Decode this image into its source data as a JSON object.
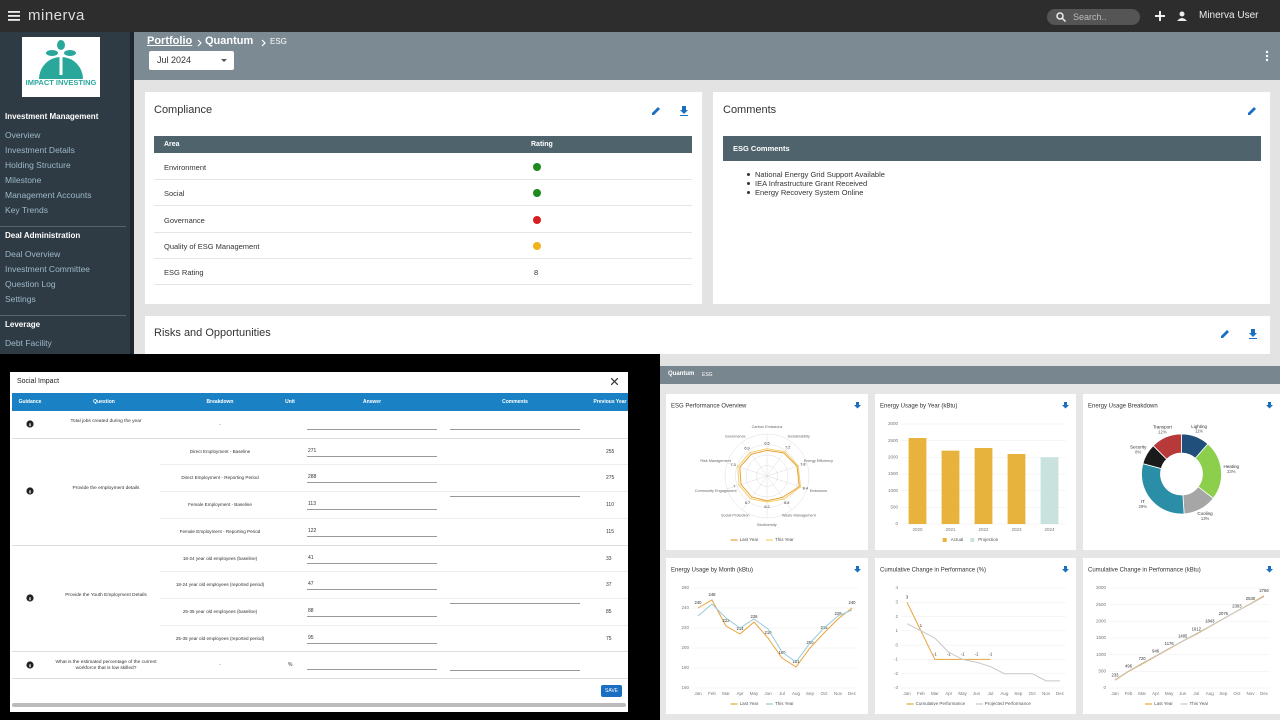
{
  "topbar": {
    "app": "minerva",
    "search": "Search..",
    "user": "Minerva User"
  },
  "sidebar": {
    "logo": "IMPACT INVESTING",
    "sections": [
      {
        "title": "Investment Management",
        "items": [
          "Overview",
          "Investment Details",
          "Holding Structure",
          "Milestone",
          "Management Accounts",
          "Key Trends"
        ]
      },
      {
        "title": "Deal Administration",
        "items": [
          "Deal Overview",
          "Investment Committee",
          "Question Log",
          "Settings"
        ]
      },
      {
        "title": "Leverage",
        "items": [
          "Debt Facility"
        ]
      }
    ]
  },
  "breadcrumb": {
    "portfolio": "Portfolio",
    "quantum": "Quantum",
    "esg": "ESG"
  },
  "period": "Jul 2024",
  "compliance": {
    "title": "Compliance",
    "columns": [
      "Area",
      "Rating"
    ],
    "rows": [
      {
        "area": "Environment",
        "status": "#1e8a1e"
      },
      {
        "area": "Social",
        "status": "#1e8a1e"
      },
      {
        "area": "Governance",
        "status": "#d81e1e"
      },
      {
        "area": "Quality of ESG Management",
        "status": "#f2b21b"
      },
      {
        "area": "ESG Rating",
        "rating": 8
      }
    ]
  },
  "comments": {
    "title": "Comments",
    "heading": "ESG Comments",
    "items": [
      "National Energy Grid Support Available",
      "IEA Infrastructure Grant Received",
      "Energy Recovery System Online"
    ]
  },
  "risks": {
    "title": "Risks and Opportunities"
  },
  "social_impact": {
    "title": "Social Impact",
    "columns": [
      "Guidance",
      "Question",
      "Breakdown",
      "Unit",
      "Answer",
      "Comments",
      "Previous Year"
    ],
    "save": "SAVE",
    "rows": [
      {
        "question": "Total jobs created during the year",
        "items": [
          {
            "breakdown": "-"
          }
        ]
      },
      {
        "question": "Provide the employment details",
        "items": [
          {
            "breakdown": "Direct Employment - Baseline",
            "answer": 271,
            "previous": 255
          },
          {
            "breakdown": "Direct Employment - Reporting Period",
            "answer": 288,
            "previous": 275
          },
          {
            "breakdown": "Female Employment - Baseline",
            "answer": 113,
            "previous": 110
          },
          {
            "breakdown": "Female Employment - Reporting Period",
            "answer": 122,
            "previous": 115
          }
        ]
      },
      {
        "question": "Provide the Youth Employment Details",
        "items": [
          {
            "breakdown": "18-24 year old employees (baseline)",
            "answer": 41,
            "previous": 33
          },
          {
            "breakdown": "18-24 year old employees (reported period)",
            "answer": 47,
            "previous": 37
          },
          {
            "breakdown": "25-35 year old employees (baseline)",
            "answer": 88,
            "previous": 85
          },
          {
            "breakdown": "25-35 year old employees (reported period)",
            "answer": 95,
            "previous": 75
          }
        ]
      },
      {
        "question": "What is the estimated percentage of the current workforce that is low skilled?",
        "items": [
          {
            "breakdown": "-",
            "unit": "%"
          }
        ]
      }
    ]
  },
  "dashboard": {
    "breadcrumb": [
      "Quantum",
      "ESG"
    ],
    "charts": [
      {
        "type": "radar",
        "title": "ESG Performance Overview",
        "rlim": [
          0,
          10
        ],
        "axes": [
          "Carbon Emissions",
          "Sustainability",
          "Energy Efficiency",
          "Emissions",
          "Waste Management",
          "Biodiversity",
          "Social Protection",
          "Community Engagement",
          "Risk Management",
          "Governance"
        ],
        "series": [
          {
            "name": "Last Year",
            "color": "#e8a33a",
            "values": [
              6.1,
              6.8,
              7.5,
              8.1,
              6.3,
              5.9,
              6.2,
              6.5,
              6.8,
              6.4
            ]
          },
          {
            "name": "This Year",
            "color": "#f3cf6b",
            "values": [
              6.5,
              7.2,
              7.8,
              8.4,
              6.8,
              6.2,
              6.7,
              7.0,
              7.3,
              6.9
            ]
          }
        ]
      },
      {
        "type": "bar",
        "title": "Energy Usage by Year (kBtu)",
        "categories": [
          "2020",
          "2021",
          "2022",
          "2023",
          "2024"
        ],
        "series": [
          {
            "name": "Actual",
            "color": "#e8b33c",
            "values": [
              2580,
              2200,
              2280,
              2100,
              null
            ]
          },
          {
            "name": "Projection",
            "color": "#c9e2dd",
            "values": [
              null,
              null,
              null,
              null,
              2000
            ]
          }
        ],
        "ylim": [
          0,
          3000
        ],
        "yticks": [
          0,
          500,
          1000,
          1500,
          2000,
          2500,
          3000
        ]
      },
      {
        "type": "pie",
        "title": "Energy Usage Breakdown",
        "categories": [
          "Lighting",
          "Heating",
          "Cooling",
          "IT",
          "Security",
          "Transport"
        ],
        "values": [
          11,
          23,
          13,
          29,
          8,
          12
        ],
        "value_labels": [
          "11%",
          "23%",
          "13%",
          "29%",
          "8%",
          "12%"
        ],
        "colors": [
          "#1f4f7a",
          "#8ccf4d",
          "#a6a6a6",
          "#2a8fa6",
          "#1a1a1a",
          "#b8393a"
        ]
      },
      {
        "type": "line",
        "title": "Energy Usage by Month (kBtu)",
        "x": [
          "Jan",
          "Feb",
          "Mar",
          "Apr",
          "May",
          "Jun",
          "Jul",
          "Aug",
          "Sep",
          "Oct",
          "Nov",
          "Dec"
        ],
        "series": [
          {
            "name": "Last Year",
            "color": "#e8a33a",
            "values": [
              240,
              248,
              222,
              214,
              226,
              210,
              190,
              181,
              200,
              215,
              229,
              240
            ]
          },
          {
            "name": "This Year",
            "color": "#9cc9d8",
            "values": [
              232,
              244,
              230,
              220,
              229,
              219,
              196,
              186,
              205,
              220,
              232,
              238
            ]
          }
        ],
        "ylim": [
          160,
          260
        ],
        "yticks": [
          160,
          180,
          200,
          220,
          240,
          260
        ]
      },
      {
        "type": "line",
        "title": "Cumulative Change in Performance (%)",
        "x": [
          "Jan",
          "Feb",
          "Mar",
          "Apr",
          "May",
          "Jun",
          "Jul",
          "Aug",
          "Sep",
          "Oct",
          "Nov",
          "Dec"
        ],
        "series": [
          {
            "name": "Cumulative Performance",
            "color": "#e8a33a",
            "values": [
              3,
              1,
              -1,
              -1,
              -1,
              -1,
              -1,
              null,
              null,
              null,
              null,
              null
            ]
          },
          {
            "name": "Projected Performance",
            "color": "#c7c7c7",
            "values": [
              1.5,
              1,
              0.5,
              -0.5,
              -1,
              -1.2,
              -1.5,
              -2,
              -2,
              -2,
              -2.5,
              -2.5
            ]
          }
        ],
        "ylim": [
          -3,
          4
        ],
        "yticks": [
          -3,
          -2,
          -1,
          0,
          1,
          2,
          3,
          4
        ]
      },
      {
        "type": "line",
        "title": "Cumulative Change in Performance (kBtu)",
        "x": [
          "Jan",
          "Feb",
          "Mar",
          "Apr",
          "May",
          "Jun",
          "Jul",
          "Aug",
          "Sep",
          "Oct",
          "Nov",
          "Dec"
        ],
        "series": [
          {
            "name": "Last Year",
            "color": "#e8a33a",
            "values": [
              233,
              496,
              720,
              946,
              1176,
              1405,
              1612,
              1843,
              2075,
              2303,
              2530,
              2766
            ]
          },
          {
            "name": "This Year",
            "color": "#c7c7c7",
            "values": [
              250,
              510,
              740,
              960,
              1190,
              1410,
              1630,
              1850,
              2080,
              2300,
              2520,
              2740
            ]
          }
        ],
        "ylim": [
          0,
          3000
        ],
        "yticks": [
          0,
          500,
          1000,
          1500,
          2000,
          2500,
          3000
        ]
      }
    ]
  }
}
